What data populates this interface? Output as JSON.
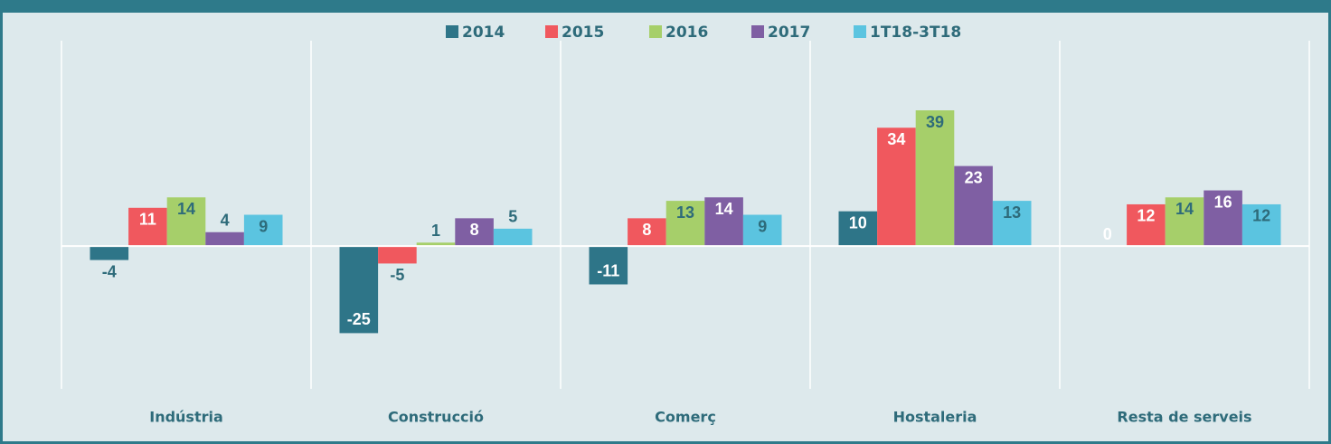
{
  "chart_data": {
    "type": "bar",
    "categories": [
      "Indústria",
      "Construcció",
      "Comerç",
      "Hostaleria",
      "Resta de serveis"
    ],
    "series": [
      {
        "name": "2014",
        "color": "#2e7588",
        "values": [
          -4,
          -25,
          -11,
          10,
          0
        ]
      },
      {
        "name": "2015",
        "color": "#f0585e",
        "values": [
          11,
          -5,
          8,
          34,
          12
        ]
      },
      {
        "name": "2016",
        "color": "#a6cf6a",
        "values": [
          14,
          1,
          13,
          39,
          14
        ]
      },
      {
        "name": "2017",
        "color": "#7f5fa3",
        "values": [
          4,
          8,
          14,
          23,
          16
        ]
      },
      {
        "name": "1T18-3T18",
        "color": "#5bc4e0",
        "values": [
          9,
          5,
          9,
          13,
          12
        ]
      }
    ],
    "ylim": [
      -41,
      59
    ],
    "grid": false,
    "legend": "top"
  }
}
